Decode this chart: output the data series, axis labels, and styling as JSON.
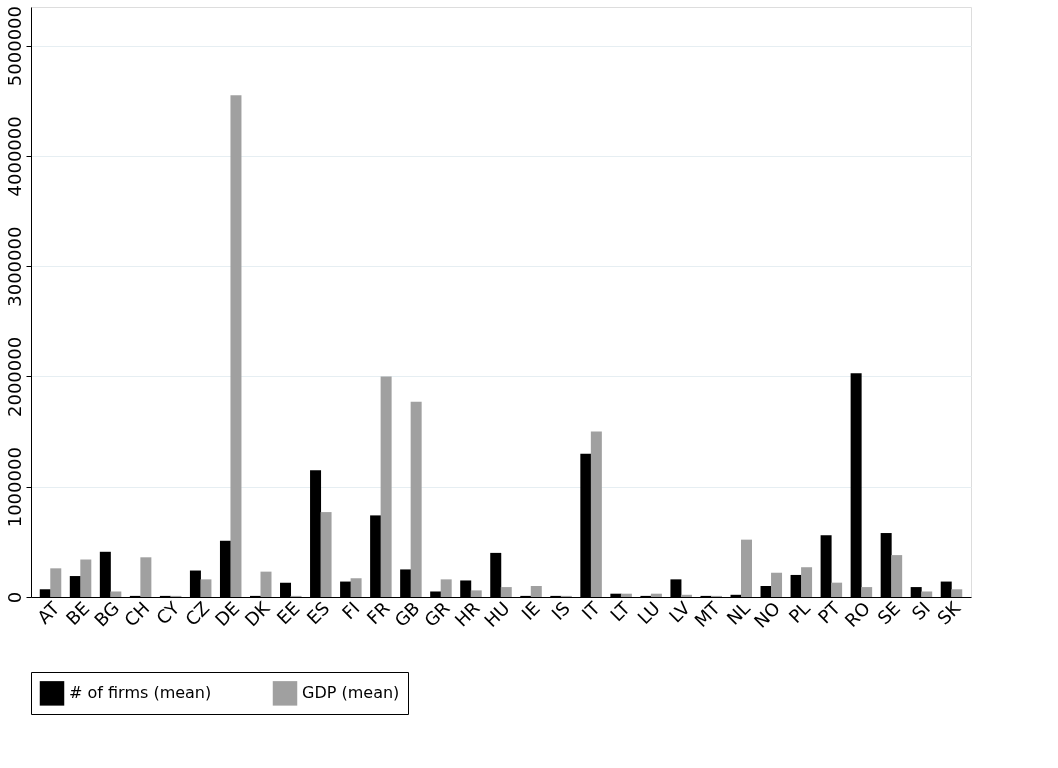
{
  "chart_data": {
    "type": "bar",
    "categories": [
      "AT",
      "BE",
      "BG",
      "CH",
      "CY",
      "CZ",
      "DE",
      "DK",
      "EE",
      "ES",
      "FI",
      "FR",
      "GB",
      "GR",
      "HR",
      "HU",
      "IE",
      "IS",
      "IT",
      "LT",
      "LU",
      "LV",
      "MT",
      "NL",
      "NO",
      "PL",
      "PT",
      "RO",
      "SE",
      "SI",
      "SK"
    ],
    "series": [
      {
        "name": "# of firms (mean)",
        "color": "#000000",
        "values": [
          70000,
          190000,
          410000,
          10000,
          10000,
          240000,
          510000,
          10000,
          130000,
          1150000,
          140000,
          740000,
          250000,
          50000,
          150000,
          400000,
          10000,
          10000,
          1300000,
          30000,
          10000,
          160000,
          10000,
          20000,
          100000,
          200000,
          560000,
          2030000,
          580000,
          90000,
          140000
        ]
      },
      {
        "name": "GDP (mean)",
        "color": "#a0a0a0",
        "values": [
          260000,
          340000,
          50000,
          360000,
          10000,
          160000,
          4550000,
          230000,
          10000,
          770000,
          170000,
          2000000,
          1770000,
          160000,
          60000,
          90000,
          100000,
          10000,
          1500000,
          30000,
          30000,
          20000,
          10000,
          520000,
          220000,
          270000,
          130000,
          90000,
          380000,
          50000,
          70000
        ]
      }
    ],
    "ylim": [
      0,
      5350000
    ],
    "yticks": [
      0,
      1000000,
      2000000,
      3000000,
      4000000,
      5000000
    ],
    "grid": "y",
    "legend": "bottom"
  }
}
